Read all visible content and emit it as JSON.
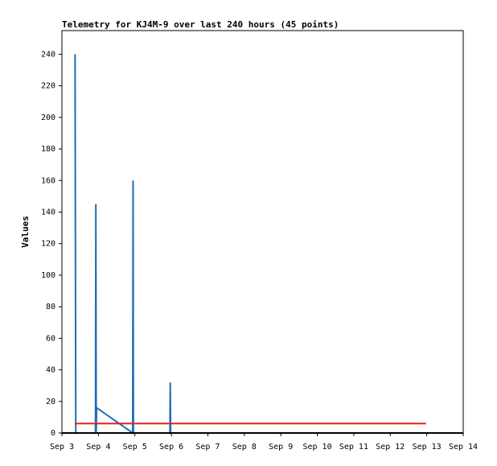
{
  "chart_data": {
    "type": "line",
    "title": "Telemetry for KJ4M-9 over last 240 hours (45 points)",
    "y_label": "Values",
    "xlim": [
      3,
      14
    ],
    "xticks": [
      {
        "value": 3,
        "label": "Sep 3"
      },
      {
        "value": 4,
        "label": "Sep 4"
      },
      {
        "value": 5,
        "label": "Sep 5"
      },
      {
        "value": 6,
        "label": "Sep 6"
      },
      {
        "value": 7,
        "label": "Sep 7"
      },
      {
        "value": 8,
        "label": "Sep 8"
      },
      {
        "value": 9,
        "label": "Sep 9"
      },
      {
        "value": 10,
        "label": "Sep 10"
      },
      {
        "value": 11,
        "label": "Sep 11"
      },
      {
        "value": 12,
        "label": "Sep 12"
      },
      {
        "value": 13,
        "label": "Sep 13"
      },
      {
        "value": 14,
        "label": "Sep 14"
      }
    ],
    "ylim": [
      0,
      255
    ],
    "yticks": [
      0,
      20,
      40,
      60,
      80,
      100,
      120,
      140,
      160,
      180,
      200,
      220,
      240
    ],
    "grid": false,
    "series": [
      {
        "color": "#1f6eb4",
        "x": [
          3.36,
          3.37,
          3.38,
          3.92,
          3.93,
          3.94,
          3.95,
          4.94,
          4.95,
          4.96,
          5.96,
          5.97,
          5.98
        ],
        "values": [
          240,
          121,
          0,
          0,
          145,
          0,
          16,
          0,
          160,
          0,
          0,
          32,
          0
        ]
      },
      {
        "color": "#e8201a",
        "x": [
          3.35,
          12.98
        ],
        "values": [
          6,
          6
        ]
      }
    ]
  }
}
